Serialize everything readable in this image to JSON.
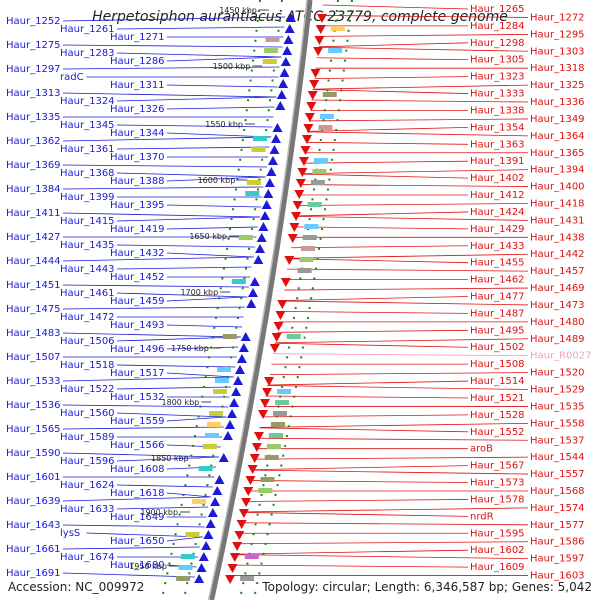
{
  "title": "Herpetosiphon aurantiacus ATCC 23779, complete genome",
  "accession": "Accession: NC_009972",
  "stats": "Topology: circular; Length: 6,346,587 bp; Genes: 5,042",
  "colors": {
    "forward": "#1a1ad8",
    "reverse": "#e01010",
    "backbone": "#888888",
    "tick": "#208020",
    "highlight": "#f0a0c8"
  },
  "scale_labels": [
    "1450 kbp",
    "1500 kbp",
    "1550 kbp",
    "1600 kbp",
    "1650 kbp",
    "1700 kbp",
    "1750 kbp",
    "1800 kbp",
    "1850 kbp",
    "1900 kbp",
    "1950 kbp"
  ],
  "forward_genes": [
    "Haur_1252",
    "Haur_1261",
    "Haur_1271",
    "Haur_1275",
    "Haur_1283",
    "Haur_1286",
    "Haur_1297",
    "radC",
    "Haur_1311",
    "Haur_1313",
    "Haur_1324",
    "Haur_1326",
    "Haur_1335",
    "Haur_1345",
    "Haur_1344",
    "Haur_1362",
    "Haur_1361",
    "Haur_1370",
    "Haur_1369",
    "Haur_1368",
    "Haur_1388",
    "Haur_1384",
    "Haur_1399",
    "Haur_1395",
    "Haur_1411",
    "Haur_1415",
    "Haur_1419",
    "Haur_1427",
    "Haur_1435",
    "Haur_1432",
    "Haur_1444",
    "Haur_1443",
    "Haur_1452",
    "Haur_1451",
    "Haur_1461",
    "Haur_1459",
    "Haur_1475",
    "Haur_1472",
    "Haur_1493",
    "Haur_1483",
    "Haur_1506",
    "Haur_1496",
    "Haur_1507",
    "Haur_1518",
    "Haur_1517",
    "Haur_1533",
    "Haur_1522",
    "Haur_1532",
    "Haur_1536",
    "Haur_1560",
    "Haur_1559",
    "Haur_1565",
    "Haur_1589",
    "Haur_1566",
    "Haur_1590",
    "Haur_1596",
    "Haur_1608",
    "Haur_1601",
    "Haur_1624",
    "Haur_1618",
    "Haur_1639",
    "Haur_1633",
    "Haur_1649",
    "Haur_1643",
    "lysS",
    "Haur_1650",
    "Haur_1661",
    "Haur_1674",
    "Haur_1680",
    "Haur_1691"
  ],
  "reverse_genes": [
    "Haur_1265",
    "Haur_1272",
    "Haur_1284",
    "Haur_1295",
    "Haur_1298",
    "Haur_1303",
    "Haur_1305",
    "Haur_1318",
    "Haur_1323",
    "Haur_1325",
    "Haur_1333",
    "Haur_1336",
    "Haur_1338",
    "Haur_1349",
    "Haur_1354",
    "Haur_1364",
    "Haur_1363",
    "Haur_1365",
    "Haur_1391",
    "Haur_1394",
    "Haur_1402",
    "Haur_1400",
    "Haur_1412",
    "Haur_1418",
    "Haur_1424",
    "Haur_1431",
    "Haur_1429",
    "Haur_1438",
    "Haur_1433",
    "Haur_1442",
    "Haur_1455",
    "Haur_1457",
    "Haur_1462",
    "Haur_1469",
    "Haur_1477",
    "Haur_1473",
    "Haur_1487",
    "Haur_1480",
    "Haur_1495",
    "Haur_1489",
    "Haur_1502",
    "Haur_R0027",
    "Haur_1508",
    "Haur_1520",
    "Haur_1514",
    "Haur_1529",
    "Haur_1521",
    "Haur_1535",
    "Haur_1528",
    "Haur_1558",
    "Haur_1552",
    "Haur_1537",
    "aroB",
    "Haur_1544",
    "Haur_1567",
    "Haur_1557",
    "Haur_1573",
    "Haur_1568",
    "Haur_1578",
    "Haur_1574",
    "nrdR",
    "Haur_1577",
    "Haur_1595",
    "Haur_1586",
    "Haur_1602",
    "Haur_1597",
    "Haur_1609",
    "Haur_1603"
  ],
  "highlighted_genes": [
    "Haur_R0027"
  ]
}
